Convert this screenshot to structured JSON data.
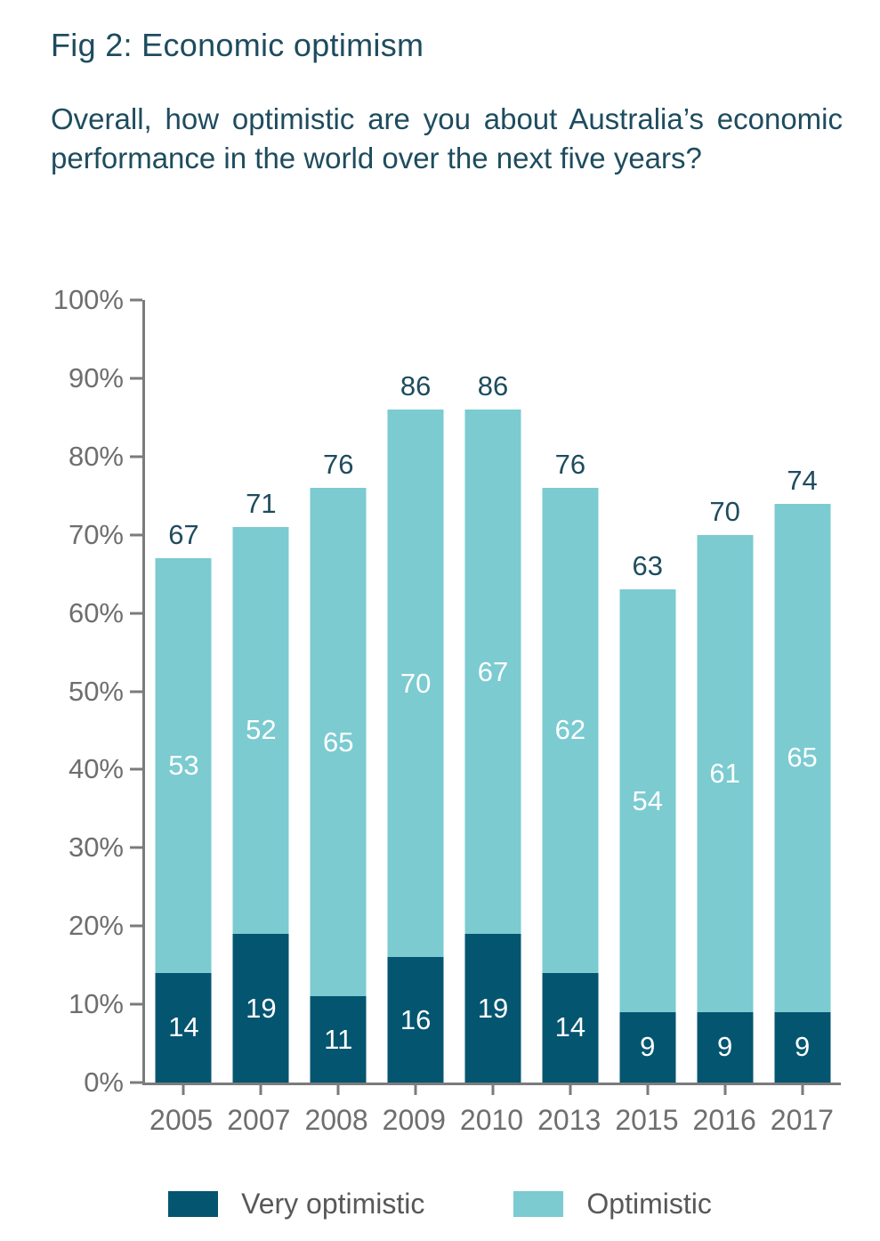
{
  "figure": {
    "title": "Fig 2: Economic optimism",
    "question": "Overall, how optimistic are you about Australia’s economic performance in the world over the next five years?"
  },
  "chart_data": {
    "type": "bar",
    "stacked": true,
    "title": "Fig 2: Economic optimism",
    "categories": [
      "2005",
      "2007",
      "2008",
      "2009",
      "2010",
      "2013",
      "2015",
      "2016",
      "2017"
    ],
    "series": [
      {
        "name": "Very optimistic",
        "color": "#045570",
        "values": [
          14,
          19,
          11,
          16,
          19,
          14,
          9,
          9,
          9
        ]
      },
      {
        "name": "Optimistic",
        "color": "#7bcbd1",
        "values": [
          53,
          52,
          65,
          70,
          67,
          62,
          54,
          61,
          65
        ]
      }
    ],
    "totals": [
      67,
      71,
      76,
      86,
      86,
      76,
      63,
      70,
      74
    ],
    "xlabel": "",
    "ylabel": "",
    "ylim": [
      0,
      100
    ],
    "yticks": [
      "100%",
      "90%",
      "80%",
      "70%",
      "60%",
      "50%",
      "40%",
      "30%",
      "20%",
      "10%",
      "0%"
    ],
    "grid": false,
    "legend_position": "bottom"
  },
  "legend": {
    "items": [
      {
        "label": "Very optimistic",
        "color": "#045570"
      },
      {
        "label": "Optimistic",
        "color": "#7bcbd1"
      }
    ]
  },
  "colors": {
    "text_dark_teal": "#1e4c5e",
    "axis_gray": "#7b7b7b",
    "tick_label_gray": "#6e6e6e",
    "legend_text_gray": "#58585a",
    "bar_value_text": "#ffffff"
  }
}
